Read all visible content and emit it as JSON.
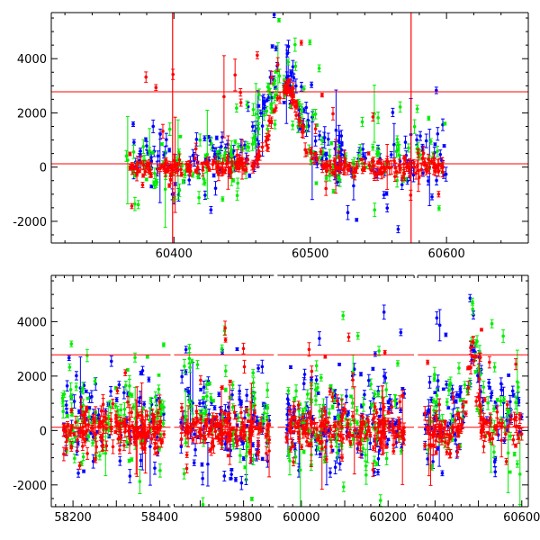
{
  "colors": {
    "blue": "#0000ff",
    "green": "#00ee00",
    "red": "#ff0000",
    "axis": "#000000"
  },
  "chart_data": [
    {
      "type": "scatter",
      "title": "",
      "xlabel": "",
      "ylabel": "",
      "xlim": [
        60310,
        60660
      ],
      "ylim": [
        -2800,
        5700
      ],
      "xticks": [
        60400,
        60500,
        60600
      ],
      "yticks": [
        -2000,
        0,
        2000,
        4000
      ],
      "hlines": [
        120,
        2780
      ],
      "vlines": [
        60399,
        60574
      ],
      "segments": [
        {
          "x": [
            60310,
            60660
          ]
        }
      ],
      "series": [
        {
          "color": "blue",
          "segments": [
            [
              60370,
              60600
            ]
          ],
          "peaks": [
            [
              60480,
              3400,
              18
            ]
          ],
          "base": 600,
          "noise": 900,
          "count": 230,
          "seed": 11
        },
        {
          "color": "green",
          "segments": [
            [
              60365,
              60600
            ]
          ],
          "peaks": [
            [
              60480,
              2800,
              18
            ]
          ],
          "base": 300,
          "noise": 800,
          "count": 200,
          "seed": 23
        },
        {
          "color": "red",
          "segments": [
            [
              60365,
              60600
            ]
          ],
          "peaks": [
            [
              60482,
              2900,
              14
            ]
          ],
          "base": 0,
          "noise": 250,
          "count": 320,
          "seed": 37
        }
      ]
    },
    {
      "type": "scatter",
      "title": "",
      "xlabel": "",
      "ylabel": "",
      "ylim": [
        -2800,
        5700
      ],
      "xticks": [
        58200,
        58400,
        59800,
        60000,
        60200,
        60400,
        60600
      ],
      "yticks": [
        -2000,
        0,
        2000,
        4000
      ],
      "hlines": [
        120,
        2780
      ],
      "segments": [
        {
          "x": [
            58150,
            58425
          ]
        },
        {
          "x": [
            59640,
            59870
          ]
        },
        {
          "x": [
            59945,
            60260
          ]
        },
        {
          "x": [
            60360,
            60615
          ]
        }
      ],
      "series": [
        {
          "color": "blue",
          "segments": [
            [
              58175,
              58410
            ],
            [
              59655,
              59860
            ],
            [
              59965,
              60240
            ],
            [
              60375,
              60600
            ]
          ],
          "peaks": [
            [
              60485,
              3200,
              20
            ]
          ],
          "base": 800,
          "noise": 1400,
          "count": 420,
          "seed": 51
        },
        {
          "color": "green",
          "segments": [
            [
              58175,
              58410
            ],
            [
              59655,
              59860
            ],
            [
              59965,
              60240
            ],
            [
              60375,
              60600
            ]
          ],
          "peaks": [
            [
              60485,
              2700,
              20
            ]
          ],
          "base": 600,
          "noise": 1500,
          "count": 380,
          "seed": 67
        },
        {
          "color": "red",
          "segments": [
            [
              58175,
              58410
            ],
            [
              59655,
              59860
            ],
            [
              59965,
              60240
            ],
            [
              60375,
              60600
            ]
          ],
          "peaks": [
            [
              60485,
              2900,
              15
            ]
          ],
          "base": 0,
          "noise": 600,
          "count": 620,
          "seed": 83
        }
      ]
    }
  ]
}
